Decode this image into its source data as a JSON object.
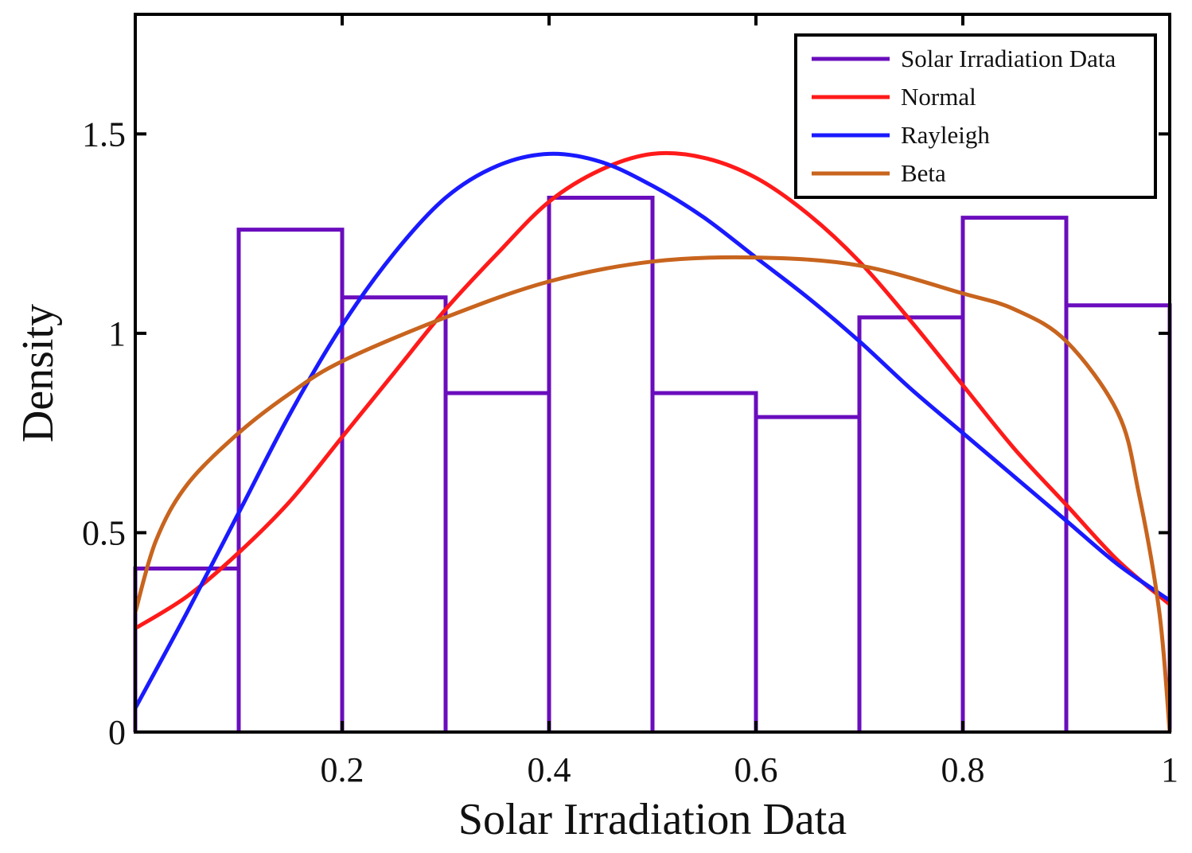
{
  "chart_data": {
    "type": "histogram-with-fitted-curves",
    "xlabel": "Solar Irradiation Data",
    "ylabel": "Density",
    "xlim": [
      0,
      1
    ],
    "ylim": [
      0,
      1.8
    ],
    "xticks": [
      0.2,
      0.4,
      0.6,
      0.8,
      1
    ],
    "xtick_labels": [
      "0.2",
      "0.4",
      "0.6",
      "0.8",
      "1"
    ],
    "yticks": [
      0,
      0.5,
      1,
      1.5
    ],
    "ytick_labels": [
      "0",
      "0.5",
      "1",
      "1.5"
    ],
    "grid": false,
    "legend_position": "top-right",
    "histogram": {
      "name": "Solar Irradiation Data",
      "color": "#6a0dbd",
      "bin_edges": [
        0,
        0.1,
        0.2,
        0.3,
        0.4,
        0.5,
        0.6,
        0.7,
        0.8,
        0.9,
        1.0
      ],
      "values": [
        0.41,
        1.26,
        1.09,
        0.85,
        1.34,
        0.85,
        0.79,
        1.04,
        1.29,
        1.07
      ]
    },
    "series": [
      {
        "name": "Normal",
        "color": "#ff1a1a",
        "x": [
          0,
          0.05,
          0.1,
          0.15,
          0.2,
          0.25,
          0.3,
          0.35,
          0.4,
          0.45,
          0.5,
          0.55,
          0.6,
          0.65,
          0.7,
          0.75,
          0.8,
          0.85,
          0.9,
          0.95,
          1.0
        ],
        "y": [
          0.26,
          0.34,
          0.45,
          0.58,
          0.74,
          0.9,
          1.06,
          1.2,
          1.33,
          1.41,
          1.45,
          1.44,
          1.39,
          1.3,
          1.18,
          1.03,
          0.87,
          0.71,
          0.57,
          0.43,
          0.32
        ]
      },
      {
        "name": "Rayleigh",
        "color": "#1a1aff",
        "x": [
          0,
          0.05,
          0.1,
          0.15,
          0.2,
          0.25,
          0.3,
          0.35,
          0.4,
          0.45,
          0.5,
          0.55,
          0.6,
          0.65,
          0.7,
          0.75,
          0.8,
          0.85,
          0.9,
          0.95,
          1.0
        ],
        "y": [
          0.06,
          0.3,
          0.55,
          0.8,
          1.02,
          1.2,
          1.34,
          1.42,
          1.45,
          1.43,
          1.37,
          1.29,
          1.19,
          1.09,
          0.98,
          0.86,
          0.75,
          0.64,
          0.53,
          0.42,
          0.33
        ]
      },
      {
        "name": "Beta",
        "color": "#c8641e",
        "x": [
          0,
          0.02,
          0.05,
          0.1,
          0.15,
          0.2,
          0.3,
          0.4,
          0.5,
          0.6,
          0.7,
          0.8,
          0.85,
          0.9,
          0.95,
          0.97,
          0.99,
          1.0
        ],
        "y": [
          0.3,
          0.48,
          0.62,
          0.75,
          0.85,
          0.93,
          1.04,
          1.13,
          1.18,
          1.19,
          1.17,
          1.1,
          1.06,
          0.98,
          0.8,
          0.6,
          0.3,
          0.0
        ]
      }
    ]
  }
}
